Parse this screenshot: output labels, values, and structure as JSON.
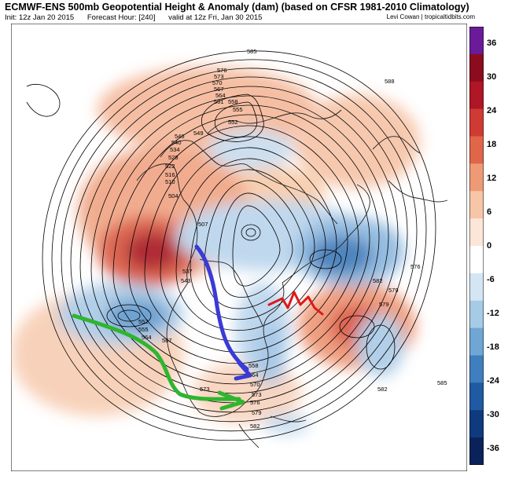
{
  "header": {
    "title": "ECMWF-ENS 500mb Geopotential Height & Anomaly (dam) (based on CFSR 1981-2010 Climatology)",
    "init": "Init: 12z Jan 20 2015",
    "forecast_hour": "Forecast Hour: [240]",
    "valid": "valid at 12z Fri, Jan 30 2015",
    "credit": "Levi Cowan | tropicaltidbits.com"
  },
  "colorbar": {
    "labels": [
      "36",
      "30",
      "24",
      "18",
      "12",
      "6",
      "0",
      "-6",
      "-12",
      "-18",
      "-24",
      "-30",
      "-36"
    ],
    "colors": [
      "#6a1b9a",
      "#8b0c1e",
      "#b01626",
      "#cf3b34",
      "#e0664a",
      "#ef9a76",
      "#f7c5a8",
      "#fbe6d8",
      "#ffffff",
      "#d4e6f3",
      "#a6cbe6",
      "#6fa6d4",
      "#3f7fbf",
      "#1f5aa3",
      "#0f3a7e",
      "#0a2259"
    ]
  },
  "contour_labels": [
    "585",
    "576",
    "573",
    "570",
    "567",
    "564",
    "561",
    "558",
    "555",
    "552",
    "549",
    "546",
    "540",
    "534",
    "528",
    "522",
    "516",
    "510",
    "504",
    "507",
    "537",
    "543",
    "552",
    "555",
    "564",
    "567",
    "573",
    "582",
    "579",
    "588",
    "582",
    "579",
    "576",
    "585",
    "582",
    "579",
    "576",
    "573",
    "570",
    "564",
    "558"
  ],
  "annotations": {
    "green_arrow": "green-arrow",
    "blue_arrow": "blue-arrow",
    "red_line": "red-zigzag"
  }
}
